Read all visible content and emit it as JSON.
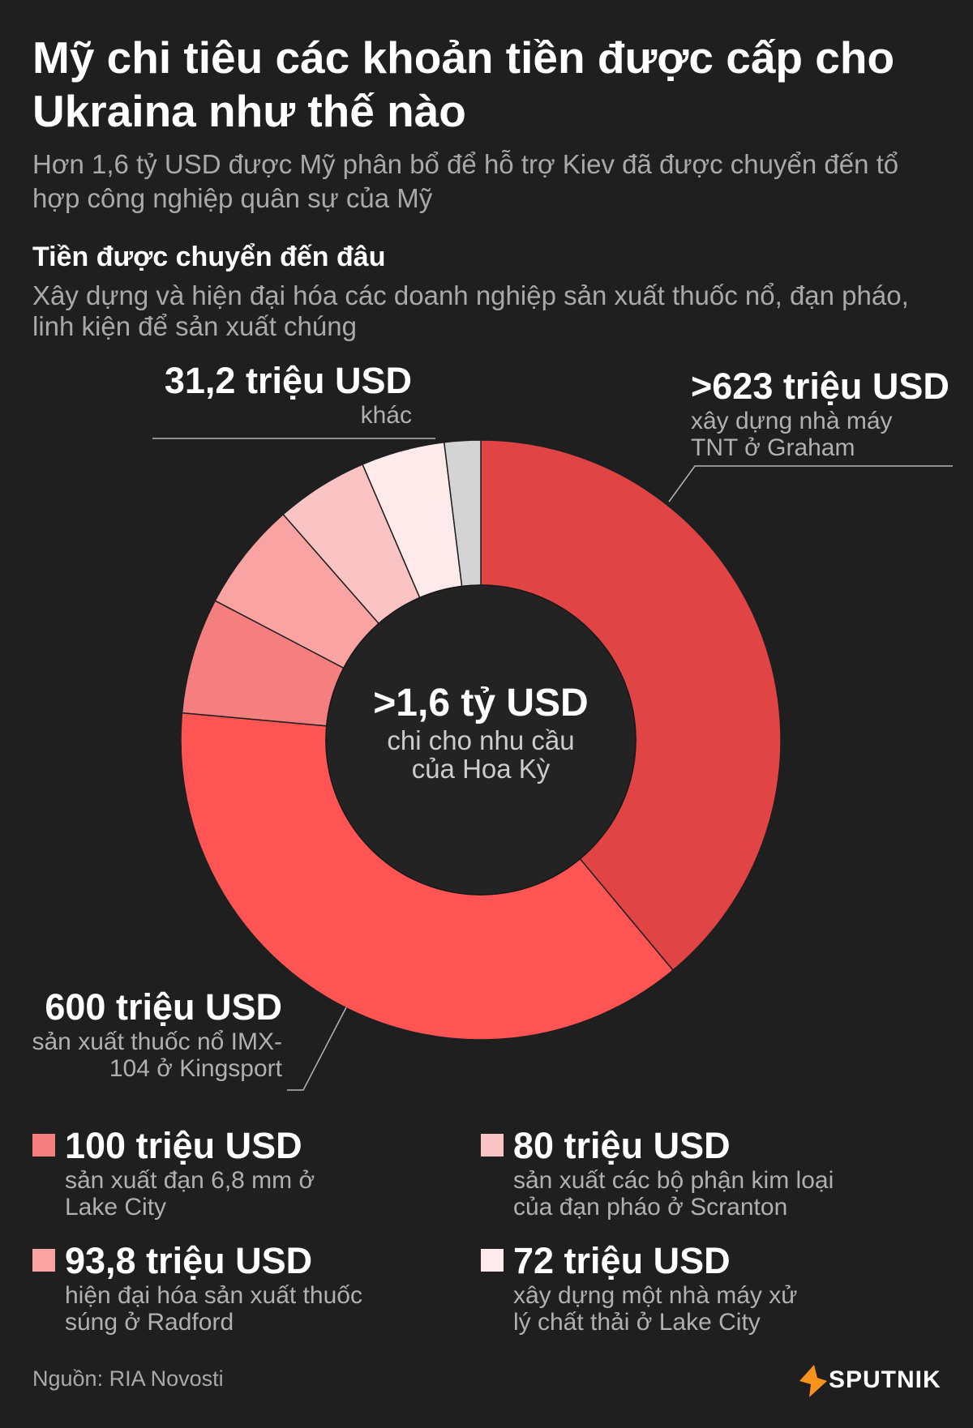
{
  "header": {
    "title": "Mỹ chi tiêu các khoản tiền được cấp cho Ukraina như thế nào",
    "subtitle": "Hơn 1,6 tỷ USD được Mỹ phân bổ để hỗ trợ Kiev đã được chuyển đến tổ hợp công nghiệp quân sự của Mỹ",
    "section_heading": "Tiền được chuyển đến đâu",
    "section_description": "Xây dựng và hiện đại hóa các doanh nghiệp sản xuất thuốc nổ, đạn pháo, linh kiện để sản xuất chúng"
  },
  "center": {
    "amount": ">1,6 tỷ USD",
    "description": "chi cho nhu cầu của Hoa Kỳ"
  },
  "callouts": {
    "tnt": {
      "amount": ">623 triệu USD",
      "description": "xây dựng nhà máy TNT ở Graham"
    },
    "imx": {
      "amount": "600 triệu USD",
      "description": "sản xuất thuốc nổ IMX-104 ở Kingsport"
    },
    "other": {
      "amount": "31,2 triệu USD",
      "description": "khác"
    }
  },
  "legend": [
    {
      "amount": "100 triệu USD",
      "description": "sản xuất đạn 6,8 mm ở Lake City",
      "color": "#f57e7e"
    },
    {
      "amount": "80 triệu USD",
      "description": "sản xuất các bộ phận kim loại của đạn pháo ở Scranton",
      "color": "#fac4c4"
    },
    {
      "amount": "93,8 triệu USD",
      "description": "hiện đại hóa sản xuất thuốc súng ở Radford",
      "color": "#f9a3a3"
    },
    {
      "amount": "72 triệu USD",
      "description": "xây dựng một nhà máy xử lý chất thải ở Lake City",
      "color": "#feeaea"
    }
  ],
  "footer": {
    "source": "Nguồn: RIA Novosti",
    "brand": "SPUTNIK",
    "brand_color": "#f7931d"
  },
  "chart_data": {
    "type": "pie",
    "unit": "triệu USD",
    "slices": [
      {
        "label": "xây dựng nhà máy TNT ở Graham",
        "value": 623,
        "color": "#e04444"
      },
      {
        "label": "sản xuất thuốc nổ IMX-104 ở Kingsport",
        "value": 600,
        "color": "#fe5454"
      },
      {
        "label": "sản xuất đạn 6,8 mm ở Lake City",
        "value": 100,
        "color": "#f57e7e"
      },
      {
        "label": "hiện đại hóa sản xuất thuốc súng ở Radford",
        "value": 93.8,
        "color": "#f9a3a3"
      },
      {
        "label": "sản xuất các bộ phận kim loại của đạn pháo ở Scranton",
        "value": 80,
        "color": "#fac4c4"
      },
      {
        "label": "xây dựng một nhà máy xử lý chất thải ở Lake City",
        "value": 72,
        "color": "#feeaea"
      },
      {
        "label": "khác",
        "value": 31.2,
        "color": "#d4d4d4"
      }
    ]
  }
}
